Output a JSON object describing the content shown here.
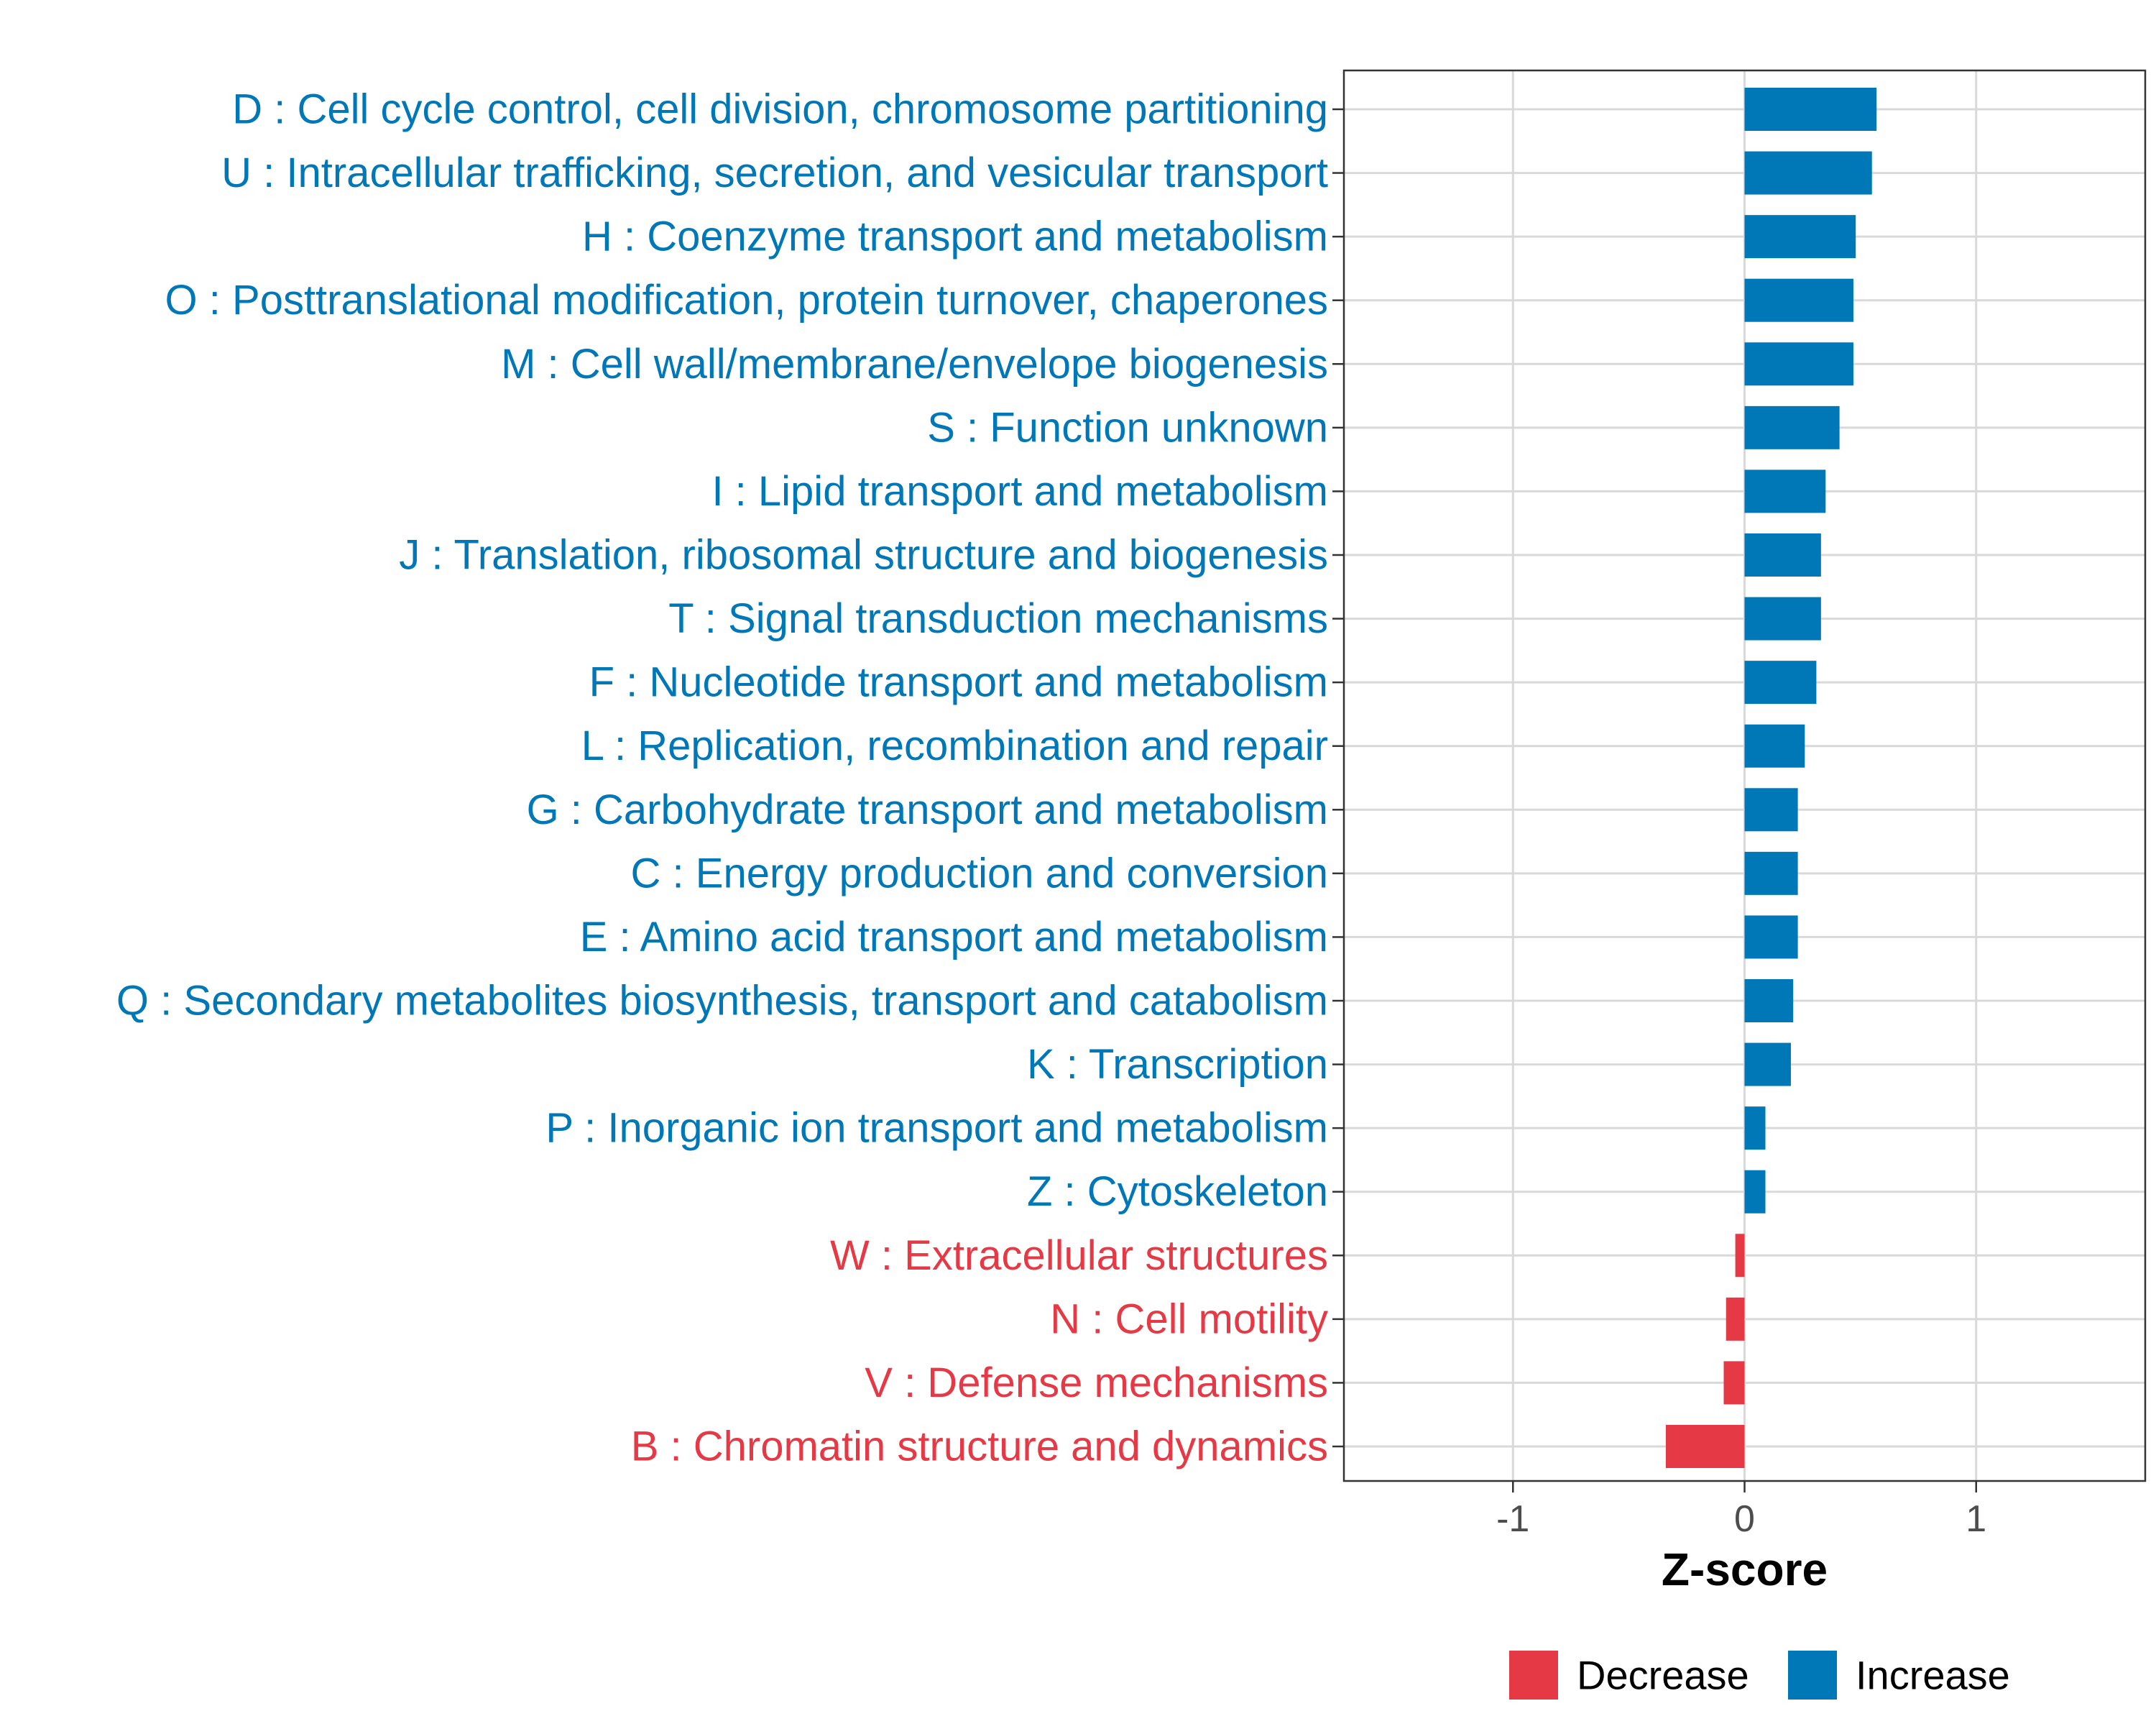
{
  "chart_data": {
    "type": "bar",
    "orientation": "horizontal",
    "xlabel": "Z-score",
    "ylabel": "",
    "xlim": [
      -1.73,
      1.73
    ],
    "xticks": [
      -1,
      0,
      1
    ],
    "xtick_labels": [
      "-1",
      "0",
      "1"
    ],
    "grid": true,
    "legend_position": "bottom",
    "legend": [
      {
        "name": "Decrease",
        "color": "#E63946"
      },
      {
        "name": "Increase",
        "color": "#0077B6"
      }
    ],
    "categories": [
      {
        "label": "D : Cell cycle control, cell division, chromosome partitioning",
        "value": 0.57,
        "group": "Increase"
      },
      {
        "label": "U : Intracellular trafficking, secretion, and vesicular transport",
        "value": 0.55,
        "group": "Increase"
      },
      {
        "label": "H : Coenzyme transport and metabolism",
        "value": 0.48,
        "group": "Increase"
      },
      {
        "label": "O : Posttranslational modification, protein turnover, chaperones",
        "value": 0.47,
        "group": "Increase"
      },
      {
        "label": "M : Cell wall/membrane/envelope biogenesis",
        "value": 0.47,
        "group": "Increase"
      },
      {
        "label": "S : Function unknown",
        "value": 0.41,
        "group": "Increase"
      },
      {
        "label": "I : Lipid transport and metabolism",
        "value": 0.35,
        "group": "Increase"
      },
      {
        "label": "J : Translation, ribosomal structure and biogenesis",
        "value": 0.33,
        "group": "Increase"
      },
      {
        "label": "T : Signal transduction mechanisms",
        "value": 0.33,
        "group": "Increase"
      },
      {
        "label": "F : Nucleotide transport and metabolism",
        "value": 0.31,
        "group": "Increase"
      },
      {
        "label": "L : Replication, recombination and repair",
        "value": 0.26,
        "group": "Increase"
      },
      {
        "label": "G : Carbohydrate transport and metabolism",
        "value": 0.23,
        "group": "Increase"
      },
      {
        "label": "C : Energy production and conversion",
        "value": 0.23,
        "group": "Increase"
      },
      {
        "label": "E : Amino acid transport and metabolism",
        "value": 0.23,
        "group": "Increase"
      },
      {
        "label": "Q : Secondary metabolites biosynthesis, transport and catabolism",
        "value": 0.21,
        "group": "Increase"
      },
      {
        "label": "K : Transcription",
        "value": 0.2,
        "group": "Increase"
      },
      {
        "label": "P : Inorganic ion transport and metabolism",
        "value": 0.09,
        "group": "Increase"
      },
      {
        "label": "Z : Cytoskeleton",
        "value": 0.09,
        "group": "Increase"
      },
      {
        "label": "W : Extracellular structures",
        "value": -0.04,
        "group": "Decrease"
      },
      {
        "label": "N : Cell motility",
        "value": -0.08,
        "group": "Decrease"
      },
      {
        "label": "V : Defense mechanisms",
        "value": -0.09,
        "group": "Decrease"
      },
      {
        "label": "B : Chromatin structure and dynamics",
        "value": -0.34,
        "group": "Decrease"
      }
    ]
  }
}
